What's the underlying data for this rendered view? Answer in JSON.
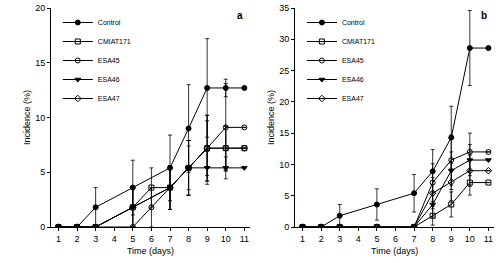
{
  "chart_data": [
    {
      "type": "line",
      "panel_label": "a",
      "x_label": "Time (days)",
      "y_label": "Incidence (%)",
      "xlim": [
        0.6,
        11.3
      ],
      "xticks": [
        1,
        2,
        3,
        4,
        5,
        6,
        7,
        8,
        9,
        10,
        11
      ],
      "ylim": [
        0,
        20
      ],
      "yticks": [
        0,
        5,
        10,
        15,
        20
      ],
      "grid": false,
      "legend": "upper left",
      "series": [
        {
          "name": "Control",
          "color": "#000000",
          "marker": "circle",
          "line_style": "solid",
          "x": [
            1,
            2,
            3,
            5,
            7,
            8,
            9,
            10,
            11
          ],
          "values": [
            0,
            0,
            1.8,
            3.6,
            5.4,
            9.0,
            12.7,
            12.7,
            12.7
          ],
          "errors": [
            0,
            0,
            1.8,
            2.5,
            3.0,
            4.0,
            4.5,
            0.8,
            0
          ]
        },
        {
          "name": "CMIAT171",
          "color": "#000000",
          "marker": "square-open",
          "line_style": "solid",
          "x": [
            1,
            2,
            3,
            5,
            6,
            7,
            8,
            9,
            10,
            11
          ],
          "values": [
            0,
            0,
            0,
            1.8,
            3.6,
            3.6,
            5.4,
            7.2,
            7.2,
            7.2
          ],
          "errors": [
            0,
            0,
            0,
            1.8,
            1.8,
            2.0,
            2.5,
            2.5,
            2.0,
            0
          ]
        },
        {
          "name": "ESA45",
          "color": "#000000",
          "marker": "circle-open",
          "line_style": "solid",
          "x": [
            1,
            2,
            3,
            5,
            6,
            7,
            8,
            9,
            10,
            11
          ],
          "values": [
            0,
            0,
            0,
            0,
            1.8,
            3.6,
            5.4,
            7.2,
            9.1,
            9.1
          ],
          "errors": [
            0,
            0,
            0,
            0,
            1.8,
            2.0,
            2.5,
            3.0,
            4.0,
            0
          ]
        },
        {
          "name": "ESA46",
          "color": "#000000",
          "marker": "triangle-down",
          "line_style": "solid",
          "x": [
            1,
            2,
            3,
            5,
            7,
            8,
            9,
            10,
            11
          ],
          "values": [
            0,
            0,
            0,
            1.8,
            3.6,
            5.4,
            5.4,
            5.4,
            5.4
          ],
          "errors": [
            0,
            0,
            0,
            1.8,
            2.0,
            2.0,
            1.5,
            1.0,
            0
          ]
        },
        {
          "name": "ESA47",
          "color": "#000000",
          "marker": "diamond-open",
          "line_style": "solid",
          "x": [
            1,
            2,
            3,
            5,
            7,
            8,
            9,
            10,
            11
          ],
          "values": [
            0,
            0,
            0,
            1.8,
            3.6,
            5.4,
            7.2,
            7.2,
            7.2
          ],
          "errors": [
            0,
            0,
            0,
            1.8,
            2.0,
            2.5,
            3.0,
            2.0,
            0
          ]
        }
      ]
    },
    {
      "type": "line",
      "panel_label": "b",
      "x_label": "Time (days)",
      "y_label": "Incidence (%)",
      "xlim": [
        0.6,
        11.3
      ],
      "xticks": [
        1,
        2,
        3,
        4,
        5,
        6,
        7,
        8,
        9,
        10,
        11
      ],
      "ylim": [
        0,
        35
      ],
      "yticks": [
        0,
        5,
        10,
        15,
        20,
        25,
        30,
        35
      ],
      "grid": false,
      "legend": "upper left",
      "series": [
        {
          "name": "Control",
          "color": "#000000",
          "marker": "circle",
          "line_style": "solid",
          "x": [
            1,
            2,
            3,
            5,
            7,
            8,
            9,
            10,
            11
          ],
          "values": [
            0,
            0,
            1.8,
            3.6,
            5.4,
            8.9,
            14.3,
            28.6,
            28.6
          ],
          "errors": [
            0,
            0,
            1.8,
            2.5,
            3.0,
            3.5,
            5.0,
            6.0,
            0
          ]
        },
        {
          "name": "CMIAT171",
          "color": "#000000",
          "marker": "square-open",
          "line_style": "solid",
          "x": [
            1,
            2,
            3,
            5,
            7,
            8,
            9,
            10,
            11
          ],
          "values": [
            0,
            0,
            0,
            0,
            0,
            1.8,
            3.6,
            7.1,
            7.1
          ],
          "errors": [
            0,
            0,
            0,
            0,
            0,
            1.5,
            2.0,
            2.0,
            0
          ]
        },
        {
          "name": "ESA45",
          "color": "#000000",
          "marker": "circle-open",
          "line_style": "solid",
          "x": [
            1,
            2,
            3,
            5,
            7,
            8,
            9,
            10,
            11
          ],
          "values": [
            0,
            0,
            0,
            0,
            0,
            7.1,
            10.7,
            12.0,
            12.0
          ],
          "errors": [
            0,
            0,
            0,
            0,
            0,
            3.0,
            4.0,
            3.0,
            0
          ]
        },
        {
          "name": "ESA46",
          "color": "#000000",
          "marker": "triangle-down",
          "line_style": "solid",
          "x": [
            1,
            2,
            3,
            5,
            7,
            8,
            9,
            10,
            11
          ],
          "values": [
            0,
            0,
            0,
            0,
            0,
            3.6,
            9.0,
            10.7,
            10.7
          ],
          "errors": [
            0,
            0,
            0,
            0,
            0,
            2.0,
            3.0,
            2.5,
            0
          ]
        },
        {
          "name": "ESA47",
          "color": "#000000",
          "marker": "diamond-open",
          "line_style": "solid",
          "x": [
            1,
            2,
            3,
            5,
            7,
            8,
            9,
            10,
            11
          ],
          "values": [
            0,
            0,
            0,
            0,
            0,
            5.4,
            7.2,
            9.0,
            9.0
          ],
          "errors": [
            0,
            0,
            0,
            0,
            0,
            2.5,
            3.0,
            2.5,
            0
          ]
        }
      ]
    }
  ]
}
